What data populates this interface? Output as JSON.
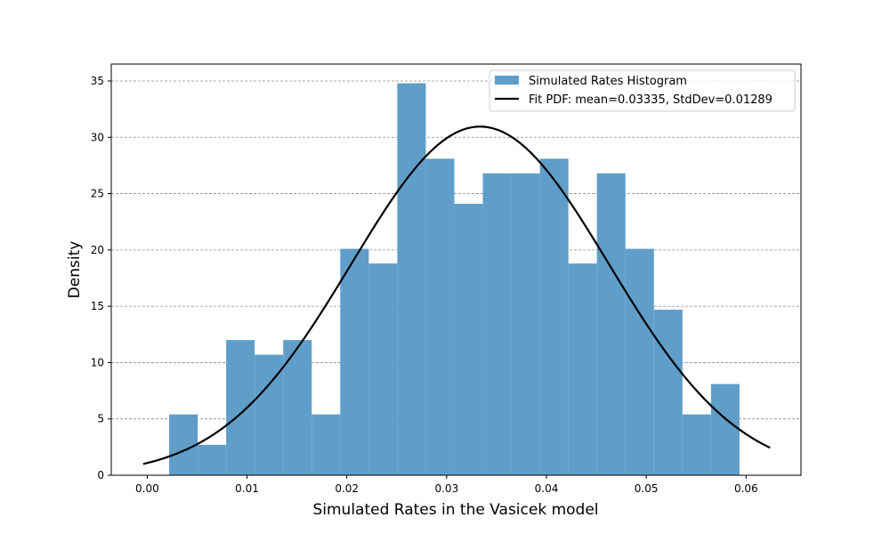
{
  "chart_data": {
    "type": "bar",
    "title": "",
    "xlabel": "Simulated Rates in the Vasicek model",
    "ylabel": "Density",
    "xlim": [
      -0.0036,
      0.0655
    ],
    "ylim": [
      0,
      36.5
    ],
    "xticks": [
      0.0,
      0.01,
      0.02,
      0.03,
      0.04,
      0.05,
      0.06
    ],
    "xtick_labels": [
      "0.00",
      "0.01",
      "0.02",
      "0.03",
      "0.04",
      "0.05",
      "0.06"
    ],
    "yticks": [
      0,
      5,
      10,
      15,
      20,
      25,
      30,
      35
    ],
    "ytick_labels": [
      "0",
      "5",
      "10",
      "15",
      "20",
      "25",
      "30",
      "35"
    ],
    "grid": "horizontal dashed",
    "legend_position": "top-right",
    "histogram": {
      "name": "Simulated Rates Histogram",
      "color": "#5f9ec9",
      "bin_start": 0.0022,
      "bin_width": 0.002857,
      "values": [
        5.4,
        2.7,
        12.0,
        10.7,
        12.0,
        5.4,
        20.1,
        18.8,
        34.8,
        28.1,
        24.1,
        26.8,
        26.8,
        28.1,
        18.8,
        26.8,
        20.1,
        14.7,
        5.4,
        8.1
      ]
    },
    "fit_pdf": {
      "name": "Fit PDF: mean=0.03335, StdDev=0.01289",
      "color": "#000000",
      "mean": 0.03335,
      "std": 0.01289,
      "x_range": [
        -0.0004,
        0.0624
      ]
    }
  }
}
